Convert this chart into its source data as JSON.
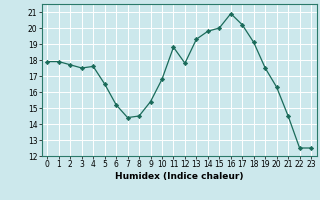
{
  "x": [
    0,
    1,
    2,
    3,
    4,
    5,
    6,
    7,
    8,
    9,
    10,
    11,
    12,
    13,
    14,
    15,
    16,
    17,
    18,
    19,
    20,
    21,
    22,
    23
  ],
  "y": [
    17.9,
    17.9,
    17.7,
    17.5,
    17.6,
    16.5,
    15.2,
    14.4,
    14.5,
    15.4,
    16.8,
    18.8,
    17.8,
    19.3,
    19.8,
    20.0,
    20.9,
    20.2,
    19.1,
    17.5,
    16.3,
    14.5,
    12.5,
    12.5
  ],
  "line_color": "#1a6b5a",
  "marker": "D",
  "marker_size": 2.2,
  "bg_color": "#cce8ec",
  "grid_color": "#ffffff",
  "xlabel": "Humidex (Indice chaleur)",
  "xlim": [
    -0.5,
    23.5
  ],
  "ylim": [
    12,
    21.5
  ],
  "yticks": [
    12,
    13,
    14,
    15,
    16,
    17,
    18,
    19,
    20,
    21
  ],
  "xticks": [
    0,
    1,
    2,
    3,
    4,
    5,
    6,
    7,
    8,
    9,
    10,
    11,
    12,
    13,
    14,
    15,
    16,
    17,
    18,
    19,
    20,
    21,
    22,
    23
  ],
  "xlabel_fontsize": 6.5,
  "tick_fontsize": 5.5
}
